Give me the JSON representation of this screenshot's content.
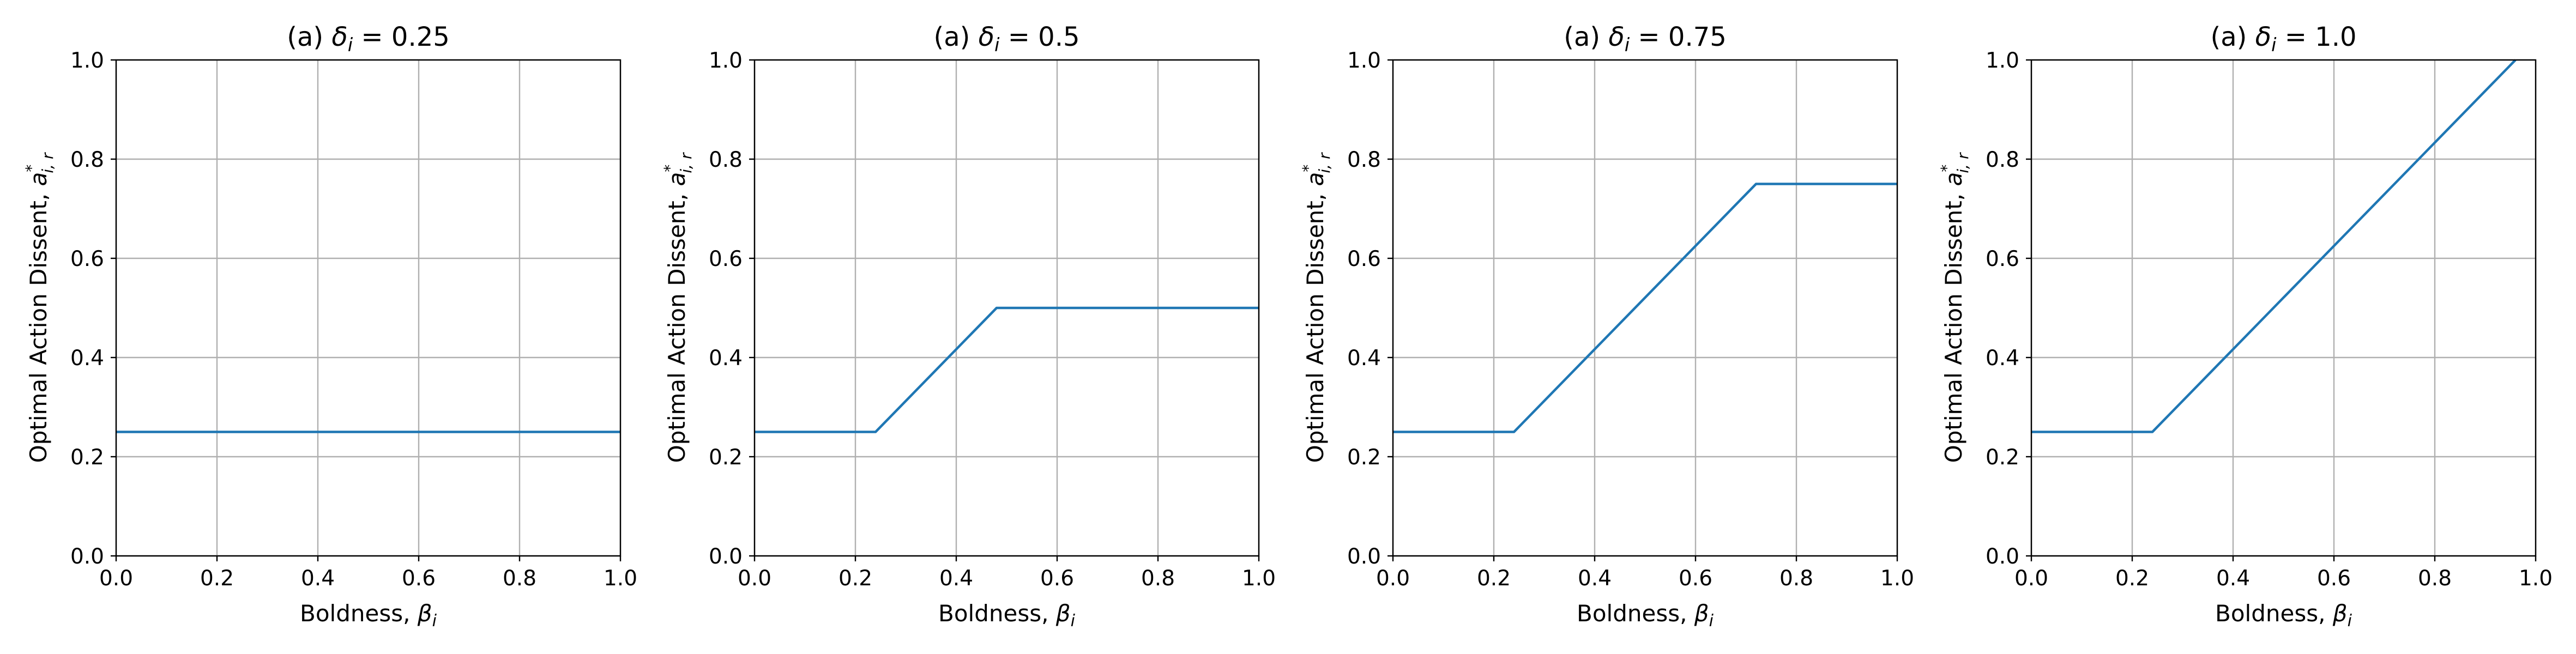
{
  "chart_data": [
    {
      "type": "line",
      "title": "(a) δ_i = 0.25",
      "title_parts": {
        "prefix": "(a) ",
        "symbol": "δ",
        "sub": "i",
        "suffix": " = 0.25"
      },
      "xlabel": "Boldness, β_i",
      "xlabel_parts": {
        "prefix": "Boldness, ",
        "symbol": "β",
        "sub": "i"
      },
      "ylabel": "Optimal Action Dissent, a*_{i,r}",
      "ylabel_parts": {
        "prefix": "Optimal Action Dissent, ",
        "symbol": "a",
        "sup": "*",
        "sub": "i, r"
      },
      "xlim": [
        0,
        1
      ],
      "ylim": [
        0,
        1
      ],
      "grid": true,
      "xticks": [
        0.0,
        0.2,
        0.4,
        0.6,
        0.8,
        1.0
      ],
      "yticks": [
        0.0,
        0.2,
        0.4,
        0.6,
        0.8,
        1.0
      ],
      "xtick_labels": [
        "0.0",
        "0.2",
        "0.4",
        "0.6",
        "0.8",
        "1.0"
      ],
      "ytick_labels": [
        "0.0",
        "0.2",
        "0.4",
        "0.6",
        "0.8",
        "1.0"
      ],
      "series": [
        {
          "color": "#1f77b4",
          "x": [
            0.0,
            1.0
          ],
          "y": [
            0.25,
            0.25
          ]
        }
      ]
    },
    {
      "type": "line",
      "title": "(a) δ_i = 0.5",
      "title_parts": {
        "prefix": "(a) ",
        "symbol": "δ",
        "sub": "i",
        "suffix": " = 0.5"
      },
      "xlabel": "Boldness, β_i",
      "xlabel_parts": {
        "prefix": "Boldness, ",
        "symbol": "β",
        "sub": "i"
      },
      "ylabel": "Optimal Action Dissent, a*_{i,r}",
      "ylabel_parts": {
        "prefix": "Optimal Action Dissent, ",
        "symbol": "a",
        "sup": "*",
        "sub": "i, r"
      },
      "xlim": [
        0,
        1
      ],
      "ylim": [
        0,
        1
      ],
      "grid": true,
      "xticks": [
        0.0,
        0.2,
        0.4,
        0.6,
        0.8,
        1.0
      ],
      "yticks": [
        0.0,
        0.2,
        0.4,
        0.6,
        0.8,
        1.0
      ],
      "xtick_labels": [
        "0.0",
        "0.2",
        "0.4",
        "0.6",
        "0.8",
        "1.0"
      ],
      "ytick_labels": [
        "0.0",
        "0.2",
        "0.4",
        "0.6",
        "0.8",
        "1.0"
      ],
      "series": [
        {
          "color": "#1f77b4",
          "x": [
            0.0,
            0.24,
            0.48,
            1.0
          ],
          "y": [
            0.25,
            0.25,
            0.5,
            0.5
          ]
        }
      ]
    },
    {
      "type": "line",
      "title": "(a) δ_i = 0.75",
      "title_parts": {
        "prefix": "(a) ",
        "symbol": "δ",
        "sub": "i",
        "suffix": " = 0.75"
      },
      "xlabel": "Boldness, β_i",
      "xlabel_parts": {
        "prefix": "Boldness, ",
        "symbol": "β",
        "sub": "i"
      },
      "ylabel": "Optimal Action Dissent, a*_{i,r}",
      "ylabel_parts": {
        "prefix": "Optimal Action Dissent, ",
        "symbol": "a",
        "sup": "*",
        "sub": "i, r"
      },
      "xlim": [
        0,
        1
      ],
      "ylim": [
        0,
        1
      ],
      "grid": true,
      "xticks": [
        0.0,
        0.2,
        0.4,
        0.6,
        0.8,
        1.0
      ],
      "yticks": [
        0.0,
        0.2,
        0.4,
        0.6,
        0.8,
        1.0
      ],
      "xtick_labels": [
        "0.0",
        "0.2",
        "0.4",
        "0.6",
        "0.8",
        "1.0"
      ],
      "ytick_labels": [
        "0.0",
        "0.2",
        "0.4",
        "0.6",
        "0.8",
        "1.0"
      ],
      "series": [
        {
          "color": "#1f77b4",
          "x": [
            0.0,
            0.24,
            0.72,
            1.0
          ],
          "y": [
            0.25,
            0.25,
            0.75,
            0.75
          ]
        }
      ]
    },
    {
      "type": "line",
      "title": "(a) δ_i = 1.0",
      "title_parts": {
        "prefix": "(a) ",
        "symbol": "δ",
        "sub": "i",
        "suffix": " = 1.0"
      },
      "xlabel": "Boldness, β_i",
      "xlabel_parts": {
        "prefix": "Boldness, ",
        "symbol": "β",
        "sub": "i"
      },
      "ylabel": "Optimal Action Dissent, a*_{i,r}",
      "ylabel_parts": {
        "prefix": "Optimal Action Dissent, ",
        "symbol": "a",
        "sup": "*",
        "sub": "i, r"
      },
      "xlim": [
        0,
        1
      ],
      "ylim": [
        0,
        1
      ],
      "grid": true,
      "xticks": [
        0.0,
        0.2,
        0.4,
        0.6,
        0.8,
        1.0
      ],
      "yticks": [
        0.0,
        0.2,
        0.4,
        0.6,
        0.8,
        1.0
      ],
      "xtick_labels": [
        "0.0",
        "0.2",
        "0.4",
        "0.6",
        "0.8",
        "1.0"
      ],
      "ytick_labels": [
        "0.0",
        "0.2",
        "0.4",
        "0.6",
        "0.8",
        "1.0"
      ],
      "series": [
        {
          "color": "#1f77b4",
          "x": [
            0.0,
            0.24,
            0.96
          ],
          "y": [
            0.25,
            0.25,
            1.0
          ]
        }
      ]
    }
  ]
}
